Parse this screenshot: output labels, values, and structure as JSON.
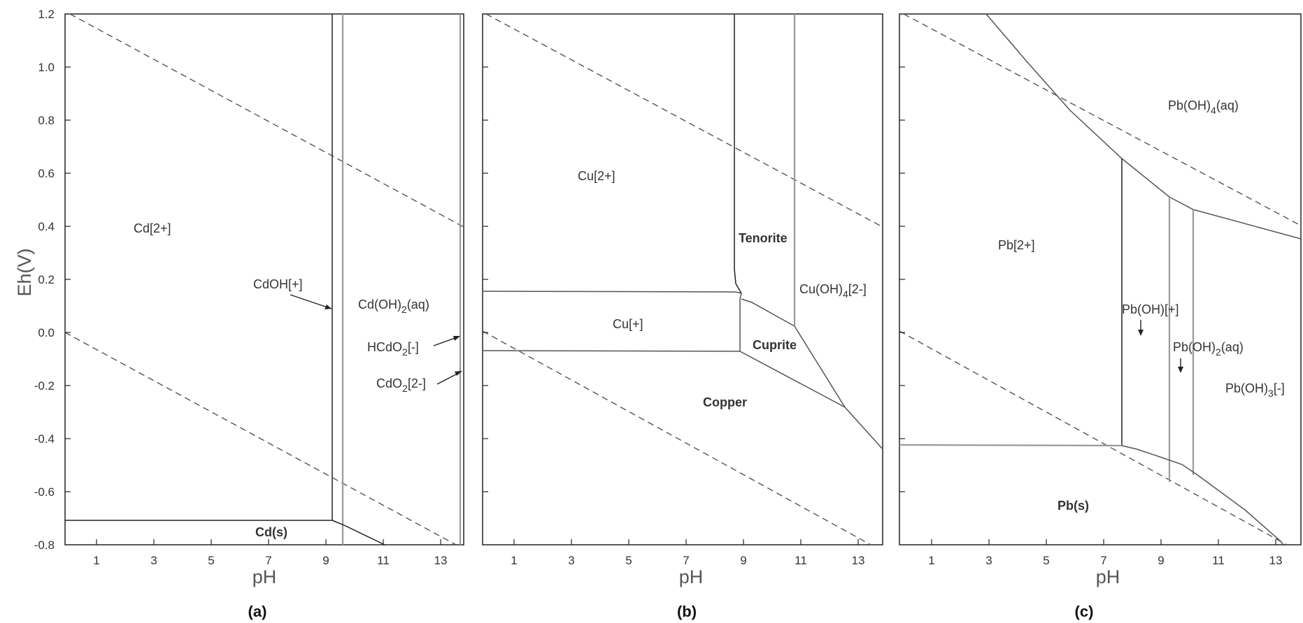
{
  "shared": {
    "ylabel": "Eh(V)",
    "xlabel": "pH",
    "x_ticks": [
      "1",
      "3",
      "5",
      "7",
      "9",
      "11",
      "13"
    ],
    "y_ticks": [
      "1.2",
      "1.0",
      "0.8",
      "0.6",
      "0.4",
      "0.2",
      "0.0",
      "-0.2",
      "-0.4",
      "-0.6",
      "-0.8"
    ]
  },
  "panels": [
    {
      "label": "(a)",
      "regions": {
        "cd2": "Cd[2+]",
        "cdoh": "CdOH[+]",
        "cdoh2_pre": "Cd(OH)",
        "cdoh2_sub": "2",
        "cdoh2_post": "(aq)",
        "hcdo2_pre": "HCdO",
        "hcdo2_sub": "2",
        "hcdo2_post": "[-]",
        "cdo2_pre": "CdO",
        "cdo2_sub": "2",
        "cdo2_post": "[2-]",
        "cds": "Cd(s)"
      }
    },
    {
      "label": "(b)",
      "regions": {
        "cu2": "Cu[2+]",
        "tenorite": "Tenorite",
        "cuoh4_pre": "Cu(OH)",
        "cuoh4_sub": "4",
        "cuoh4_post": "[2-]",
        "cu1": "Cu[+]",
        "cuprite": "Cuprite",
        "copper": "Copper"
      }
    },
    {
      "label": "(c)",
      "regions": {
        "pboh4_pre": "Pb(OH)",
        "pboh4_sub": "4",
        "pboh4_post": "(aq)",
        "pb2": "Pb[2+]",
        "pboh": "Pb(OH)[+]",
        "pboh2_pre": "Pb(OH)",
        "pboh2_sub": "2",
        "pboh2_post": "(aq)",
        "pboh3_pre": "Pb(OH)",
        "pboh3_sub": "3",
        "pboh3_post": "[-]",
        "pbs": "Pb(s)"
      }
    }
  ]
}
